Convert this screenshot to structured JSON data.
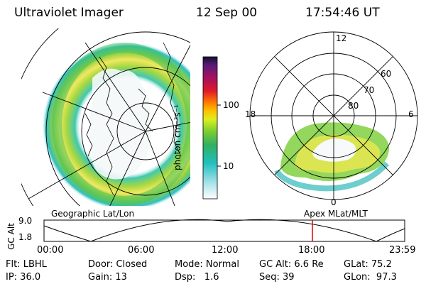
{
  "header": {
    "title": "Ultraviolet Imager",
    "date": "12 Sep 00",
    "time": "17:54:46 UT"
  },
  "colorbar": {
    "unit_label": "photon cm⁻²s⁻¹",
    "ticks": [
      "100",
      "10"
    ],
    "colors": [
      "#111133",
      "#5a1a78",
      "#a01060",
      "#e01a2a",
      "#ff7a00",
      "#ffc000",
      "#ddee20",
      "#80d030",
      "#30b060",
      "#20c0c0",
      "#a0e0e8",
      "#ffffff"
    ]
  },
  "polar_plot": {
    "mlt_labels": [
      "12",
      "18",
      "6",
      "0"
    ],
    "lat_labels": [
      "60",
      "70",
      "80"
    ]
  },
  "map_labels": {
    "left": "Geographic Lat/Lon",
    "right": "Apex MLat/MLT"
  },
  "altitude_strip": {
    "axis_title": "GC Alt",
    "y_ticks": [
      "9.0",
      "1.8"
    ],
    "x_ticks": [
      "00:00",
      "06:00",
      "12:00",
      "18:00",
      "23:59"
    ],
    "marker_time": "17:54:46"
  },
  "info": {
    "row1": [
      "Flt: LBHL",
      "Door: Closed",
      "Mode: Normal",
      "GC Alt: 6.6 Re",
      "GLat: 75.2"
    ],
    "row2": [
      "IP: 36.0",
      "Gain: 13",
      "Dsp:   1.6",
      "Seq: 39",
      "GLon:  97.3"
    ]
  }
}
